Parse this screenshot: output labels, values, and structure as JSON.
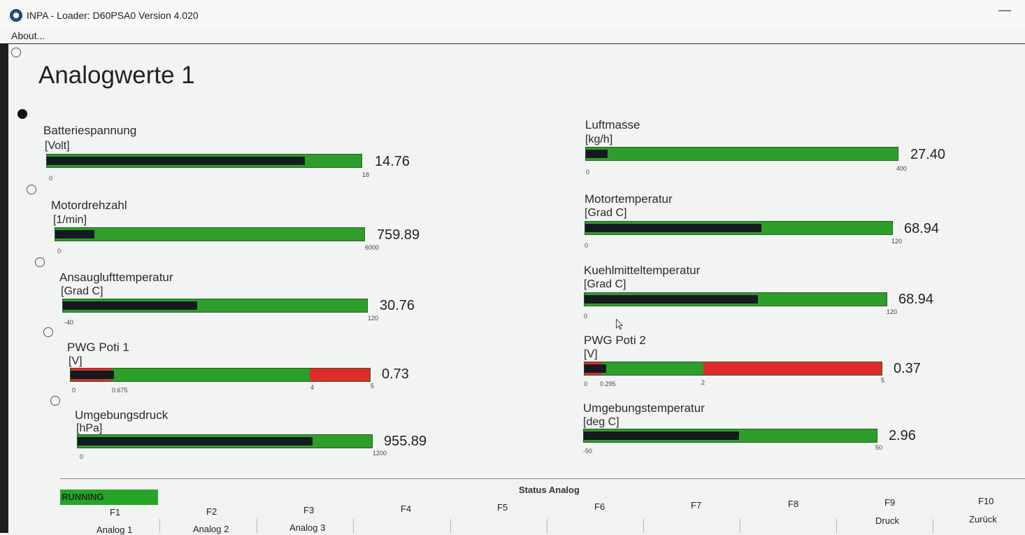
{
  "window": {
    "title": "INPA - Loader:  D60PSA0 Version 4.020",
    "menu_about": "About...",
    "minimize_symbol": "—"
  },
  "page": {
    "title": "Analogwerte 1"
  },
  "gauges": {
    "batteriespannung": {
      "label": "Batteriespannung",
      "unit": "[Volt]",
      "value": "14.76",
      "min": "0",
      "max": "18",
      "fraction": 0.82
    },
    "motordrehzahl": {
      "label": "Motordrehzahl",
      "unit": "[1/min]",
      "value": "759.89",
      "min": "0",
      "max": "6000",
      "fraction": 0.127
    },
    "ansaugluft": {
      "label": "Ansauglufttemperatur",
      "unit": "[Grad C]",
      "value": "30.76",
      "min": "-40",
      "max": "120",
      "fraction": 0.442
    },
    "pwg1": {
      "label": "PWG Poti 1",
      "unit": "[V]",
      "value": "0.73",
      "min": "0",
      "tick1": "0.675",
      "tick2": "4",
      "max": "5",
      "fraction": 0.146,
      "red_low_fraction": 0.135,
      "red_high_fraction": 0.8
    },
    "umgebungsdruck": {
      "label": "Umgebungsdruck",
      "unit": "[hPa]",
      "value": "955.89",
      "min": "0",
      "max": "1200",
      "fraction": 0.797
    },
    "luftmasse": {
      "label": "Luftmasse",
      "unit": "[kg/h]",
      "value": "27.40",
      "min": "0",
      "max": "400",
      "fraction": 0.069
    },
    "motortemp": {
      "label": "Motortemperatur",
      "unit": "[Grad C]",
      "value": "68.94",
      "min": "0",
      "max": "120",
      "fraction": 0.575
    },
    "kuehlmittel": {
      "label": "Kuehlmitteltemperatur",
      "unit": "[Grad C]",
      "value": "68.94",
      "min": "0",
      "max": "120",
      "fraction": 0.575
    },
    "pwg2": {
      "label": "PWG Poti 2",
      "unit": "[V]",
      "value": "0.37",
      "min": "0",
      "tick1": "0.295",
      "tick2": "2",
      "max": "5",
      "fraction": 0.074,
      "red_low_fraction": 0.059,
      "red_high_fraction": 0.4
    },
    "umgebungstemp": {
      "label": "Umgebungstemperatur",
      "unit": "[deg C]",
      "value": "2.96",
      "min": "-50",
      "max": "50",
      "fraction": 0.53
    }
  },
  "status": {
    "running": "RUNNING",
    "title": "Status Analog"
  },
  "fkeys": {
    "f1": "F1",
    "f2": "F2",
    "f3": "F3",
    "f4": "F4",
    "f5": "F5",
    "f6": "F6",
    "f7": "F7",
    "f8": "F8",
    "f9": "F9",
    "f10": "F10",
    "b1": "Analog 1",
    "b2": "Analog 2",
    "b3": "Analog 3",
    "b9": "Druck",
    "b10": "Zurück"
  },
  "colors": {
    "bar_green": "#2e9e2b",
    "bar_fill": "#141a1e",
    "bar_red": "#e12b2b",
    "running_green": "#26a526"
  },
  "icons": {
    "app": "bmw-logo-icon",
    "cursor": "mouse-pointer-icon"
  }
}
